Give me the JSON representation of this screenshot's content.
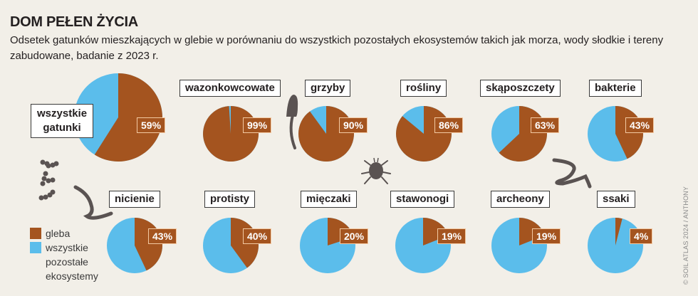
{
  "header": {
    "title": "DOM PEŁEN ŻYCIA",
    "subtitle": "Odsetek gatunków mieszkających w glebie w porównaniu do wszystkich pozostałych ekosystemów takich jak morza, wody słodkie i tereny zabudowane, badanie z 2023 r."
  },
  "colors": {
    "soil": "#a4541f",
    "other": "#5bbdeb",
    "background": "#f2efe8",
    "icons": "#5a5352"
  },
  "legend": {
    "soil_label": "gleba",
    "other_label_1": "wszystkie",
    "other_label_2": "pozostałe",
    "other_label_3": "ekosystemy"
  },
  "labels": {
    "all_1": "wszystkie",
    "all_2": "gatunki",
    "wazonkowcowate": "wazonkowcowate",
    "grzyby": "grzyby",
    "rosliny": "rośliny",
    "skaposzczety": "skąposzczety",
    "bakterie": "bakterie",
    "nicienie": "nicienie",
    "protisty": "protisty",
    "mieczaki": "mięczaki",
    "stawonogi": "stawonogi",
    "archeony": "archeony",
    "ssaki": "ssaki"
  },
  "pct": {
    "all": "59%",
    "wazonkowcowate": "99%",
    "grzyby": "90%",
    "rosliny": "86%",
    "skaposzczety": "63%",
    "bakterie": "43%",
    "nicienie": "43%",
    "protisty": "40%",
    "mieczaki": "20%",
    "stawonogi": "19%",
    "archeony": "19%",
    "ssaki": "4%"
  },
  "credit": "© SOIL ATLAS 2024 / ANTHONY",
  "chart_data": {
    "type": "pie",
    "title": "DOM PEŁEN ŻYCIA",
    "subtitle": "Odsetek gatunków mieszkających w glebie w porównaniu do wszystkich pozostałych ekosystemów takich jak morza, wody słodkie i tereny zabudowane, badanie z 2023 r.",
    "legend": [
      "gleba",
      "wszystkie pozostałe ekosystemy"
    ],
    "categories": [
      "wszystkie gatunki",
      "wazonkowcowate",
      "grzyby",
      "rośliny",
      "skąposzczety",
      "bakterie",
      "nicienie",
      "protisty",
      "mięczaki",
      "stawonogi",
      "archeony",
      "ssaki"
    ],
    "series": [
      {
        "name": "gleba",
        "values": [
          59,
          99,
          90,
          86,
          63,
          43,
          43,
          40,
          20,
          19,
          19,
          4
        ]
      },
      {
        "name": "wszystkie pozostałe ekosystemy",
        "values": [
          41,
          1,
          10,
          14,
          37,
          57,
          57,
          60,
          80,
          81,
          81,
          96
        ]
      }
    ],
    "units": "%"
  }
}
